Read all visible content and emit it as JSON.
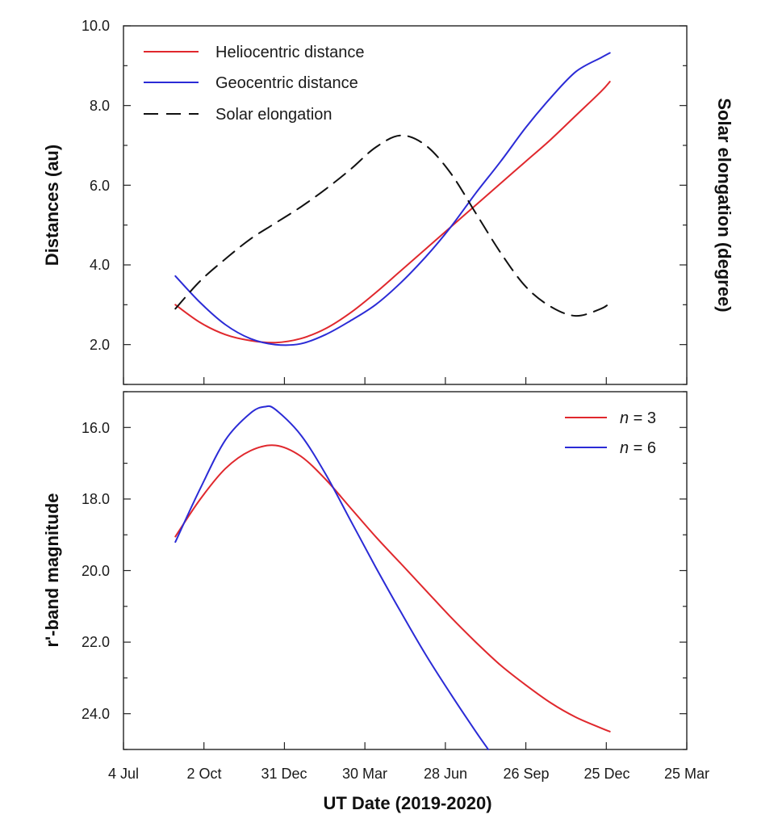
{
  "chart_data": [
    {
      "id": "distances",
      "type": "line",
      "x_axis": {
        "kind": "date",
        "ticks": [
          {
            "date": "2019-07-04",
            "label": "4 Jul"
          },
          {
            "date": "2019-10-02",
            "label": "2 Oct"
          },
          {
            "date": "2019-12-31",
            "label": "31 Dec"
          },
          {
            "date": "2020-03-30",
            "label": "30 Mar"
          },
          {
            "date": "2020-06-28",
            "label": "28 Jun"
          },
          {
            "date": "2020-09-26",
            "label": "26 Sep"
          },
          {
            "date": "2020-12-25",
            "label": "25 Dec"
          },
          {
            "date": "2021-03-25",
            "label": "25 Mar"
          }
        ],
        "range": [
          "2019-07-04",
          "2021-03-25"
        ],
        "show_labels": false
      },
      "ylabel": "Distances  (au)",
      "ylim": [
        1.0,
        10.0
      ],
      "yticks": [
        "2.0",
        "4.0",
        "6.0",
        "8.0",
        "10.0"
      ],
      "y2label": "Solar elongation (degree)",
      "legend_position": "top-left",
      "series": [
        {
          "name": "Heliocentric distance",
          "color": "#e0282d",
          "dash": "solid",
          "axis": "left",
          "points": [
            [
              "2019-08-31",
              3.0
            ],
            [
              "2019-09-28",
              2.55
            ],
            [
              "2019-10-26",
              2.25
            ],
            [
              "2019-11-23",
              2.1
            ],
            [
              "2019-12-21",
              2.05
            ],
            [
              "2020-01-18",
              2.15
            ],
            [
              "2020-02-15",
              2.4
            ],
            [
              "2020-03-14",
              2.8
            ],
            [
              "2020-04-11",
              3.3
            ],
            [
              "2020-05-09",
              3.85
            ],
            [
              "2020-06-06",
              4.4
            ],
            [
              "2020-07-04",
              4.95
            ],
            [
              "2020-08-01",
              5.5
            ],
            [
              "2020-08-29",
              6.05
            ],
            [
              "2020-09-26",
              6.6
            ],
            [
              "2020-10-24",
              7.15
            ],
            [
              "2020-11-21",
              7.75
            ],
            [
              "2020-12-19",
              8.35
            ],
            [
              "2020-12-29",
              8.6
            ]
          ]
        },
        {
          "name": "Geocentric distance",
          "color": "#2b2bd6",
          "dash": "solid",
          "axis": "left",
          "points": [
            [
              "2019-08-31",
              3.72
            ],
            [
              "2019-09-28",
              3.05
            ],
            [
              "2019-10-26",
              2.5
            ],
            [
              "2019-11-23",
              2.15
            ],
            [
              "2019-12-21",
              2.0
            ],
            [
              "2020-01-18",
              2.02
            ],
            [
              "2020-02-15",
              2.25
            ],
            [
              "2020-03-14",
              2.6
            ],
            [
              "2020-04-11",
              3.0
            ],
            [
              "2020-05-09",
              3.55
            ],
            [
              "2020-06-06",
              4.2
            ],
            [
              "2020-07-04",
              4.95
            ],
            [
              "2020-08-01",
              5.8
            ],
            [
              "2020-08-29",
              6.6
            ],
            [
              "2020-09-26",
              7.45
            ],
            [
              "2020-10-24",
              8.2
            ],
            [
              "2020-11-21",
              8.85
            ],
            [
              "2020-12-19",
              9.2
            ],
            [
              "2020-12-29",
              9.32
            ]
          ]
        },
        {
          "name": "Solar elongation",
          "color": "#111111",
          "dash": "dashed",
          "axis": "right",
          "note_units": "plotted against the right axis (degree); right axis prints no tick labels, values given as left-axis equivalents",
          "points": [
            [
              "2019-08-31",
              2.9
            ],
            [
              "2019-09-28",
              3.6
            ],
            [
              "2019-10-26",
              4.15
            ],
            [
              "2019-11-23",
              4.65
            ],
            [
              "2019-12-21",
              5.05
            ],
            [
              "2020-01-18",
              5.45
            ],
            [
              "2020-02-15",
              5.9
            ],
            [
              "2020-03-14",
              6.4
            ],
            [
              "2020-04-11",
              6.95
            ],
            [
              "2020-05-09",
              7.25
            ],
            [
              "2020-06-06",
              7.0
            ],
            [
              "2020-07-04",
              6.3
            ],
            [
              "2020-08-01",
              5.3
            ],
            [
              "2020-08-29",
              4.3
            ],
            [
              "2020-09-26",
              3.45
            ],
            [
              "2020-10-24",
              2.95
            ],
            [
              "2020-11-21",
              2.72
            ],
            [
              "2020-12-19",
              2.9
            ],
            [
              "2020-12-29",
              3.05
            ]
          ]
        }
      ]
    },
    {
      "id": "magnitude",
      "type": "line",
      "x_axis": {
        "kind": "date",
        "ticks": [
          {
            "date": "2019-07-04",
            "label": "4 Jul"
          },
          {
            "date": "2019-10-02",
            "label": "2 Oct"
          },
          {
            "date": "2019-12-31",
            "label": "31 Dec"
          },
          {
            "date": "2020-03-30",
            "label": "30 Mar"
          },
          {
            "date": "2020-06-28",
            "label": "28 Jun"
          },
          {
            "date": "2020-09-26",
            "label": "26 Sep"
          },
          {
            "date": "2020-12-25",
            "label": "25 Dec"
          },
          {
            "date": "2021-03-25",
            "label": "25 Mar"
          }
        ],
        "range": [
          "2019-07-04",
          "2021-03-25"
        ],
        "show_labels": true
      },
      "xlabel": "UT Date (2019-2020)",
      "ylabel": "r'-band magnitude",
      "ylim": [
        15.0,
        25.0
      ],
      "y_inverted": true,
      "yticks": [
        "16.0",
        "18.0",
        "20.0",
        "22.0",
        "24.0"
      ],
      "legend_position": "top-right",
      "series": [
        {
          "name_italic": "n",
          "name_rest": " = 3",
          "color": "#e0282d",
          "points": [
            [
              "2019-08-31",
              19.05
            ],
            [
              "2019-09-28",
              18.0
            ],
            [
              "2019-10-26",
              17.15
            ],
            [
              "2019-11-23",
              16.65
            ],
            [
              "2019-12-21",
              16.5
            ],
            [
              "2020-01-18",
              16.8
            ],
            [
              "2020-02-15",
              17.45
            ],
            [
              "2020-03-14",
              18.25
            ],
            [
              "2020-04-11",
              19.05
            ],
            [
              "2020-05-09",
              19.8
            ],
            [
              "2020-06-06",
              20.55
            ],
            [
              "2020-07-04",
              21.3
            ],
            [
              "2020-08-01",
              22.0
            ],
            [
              "2020-08-29",
              22.65
            ],
            [
              "2020-09-26",
              23.2
            ],
            [
              "2020-10-24",
              23.7
            ],
            [
              "2020-11-21",
              24.1
            ],
            [
              "2020-12-19",
              24.4
            ],
            [
              "2020-12-29",
              24.5
            ]
          ]
        },
        {
          "name_italic": "n",
          "name_rest": " = 6",
          "color": "#2b2bd6",
          "points": [
            [
              "2019-08-31",
              19.2
            ],
            [
              "2019-09-28",
              17.7
            ],
            [
              "2019-10-26",
              16.35
            ],
            [
              "2019-11-23",
              15.6
            ],
            [
              "2019-12-09",
              15.42
            ],
            [
              "2019-12-21",
              15.5
            ],
            [
              "2020-01-18",
              16.2
            ],
            [
              "2020-02-15",
              17.3
            ],
            [
              "2020-03-14",
              18.6
            ],
            [
              "2020-04-11",
              19.9
            ],
            [
              "2020-05-09",
              21.15
            ],
            [
              "2020-06-06",
              22.35
            ],
            [
              "2020-07-04",
              23.45
            ],
            [
              "2020-08-01",
              24.5
            ],
            [
              "2020-08-15",
              25.0
            ]
          ]
        }
      ]
    }
  ]
}
